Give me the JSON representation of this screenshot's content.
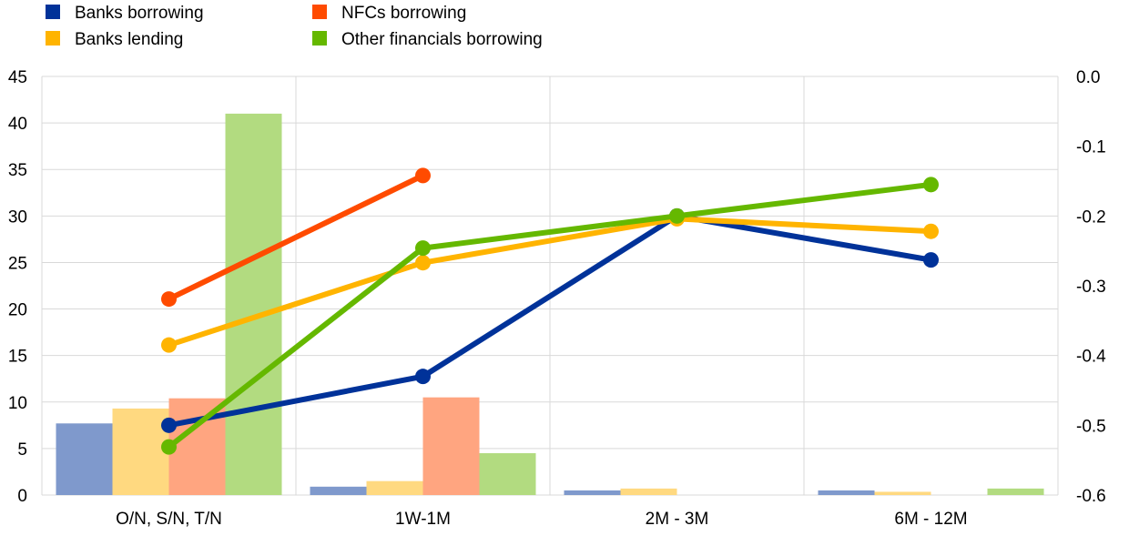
{
  "chart_data": {
    "type": "bar+line",
    "categories": [
      "O/N, S/N, T/N",
      "1W-1M",
      "2M - 3M",
      "6M - 12M"
    ],
    "legend": [
      {
        "name": "Banks borrowing",
        "color": "#003299"
      },
      {
        "name": "NFCs borrowing",
        "color": "#FF4B00"
      },
      {
        "name": "Banks lending",
        "color": "#FFB400"
      },
      {
        "name": "Other financials borrowing",
        "color": "#65B800"
      }
    ],
    "left_axis": {
      "min": 0,
      "max": 45,
      "ticks": [
        "0",
        "5",
        "10",
        "15",
        "20",
        "25",
        "30",
        "35",
        "40",
        "45"
      ]
    },
    "right_axis": {
      "min": -0.6,
      "max": 0.0,
      "ticks": [
        "-0.6",
        "-0.5",
        "-0.4",
        "-0.3",
        "-0.2",
        "-0.1",
        "0.0"
      ]
    },
    "bar_series": [
      {
        "name": "Banks borrowing",
        "color": "#7F99CC",
        "values": [
          7.7,
          0.9,
          0.5,
          0.5
        ]
      },
      {
        "name": "Banks lending",
        "color": "#FFD980",
        "values": [
          9.3,
          1.5,
          0.7,
          0.35
        ]
      },
      {
        "name": "NFCs borrowing",
        "color": "#FFA580",
        "values": [
          10.4,
          10.5,
          0,
          0
        ]
      },
      {
        "name": "Other financials borrowing",
        "color": "#B2DB80",
        "values": [
          41.0,
          4.5,
          0,
          0.7
        ]
      }
    ],
    "line_series": [
      {
        "name": "Banks borrowing",
        "color": "#003299",
        "values": [
          -0.5,
          -0.43,
          -0.2,
          -0.263
        ]
      },
      {
        "name": "NFCs borrowing",
        "color": "#FF4B00",
        "values": [
          -0.319,
          -0.142,
          null,
          null
        ]
      },
      {
        "name": "Banks lending",
        "color": "#FFB400",
        "values": [
          -0.385,
          -0.267,
          -0.204,
          -0.222
        ]
      },
      {
        "name": "Other financials borrowing",
        "color": "#65B800",
        "values": [
          -0.531,
          -0.246,
          -0.2,
          -0.155
        ]
      }
    ],
    "grid": true
  }
}
